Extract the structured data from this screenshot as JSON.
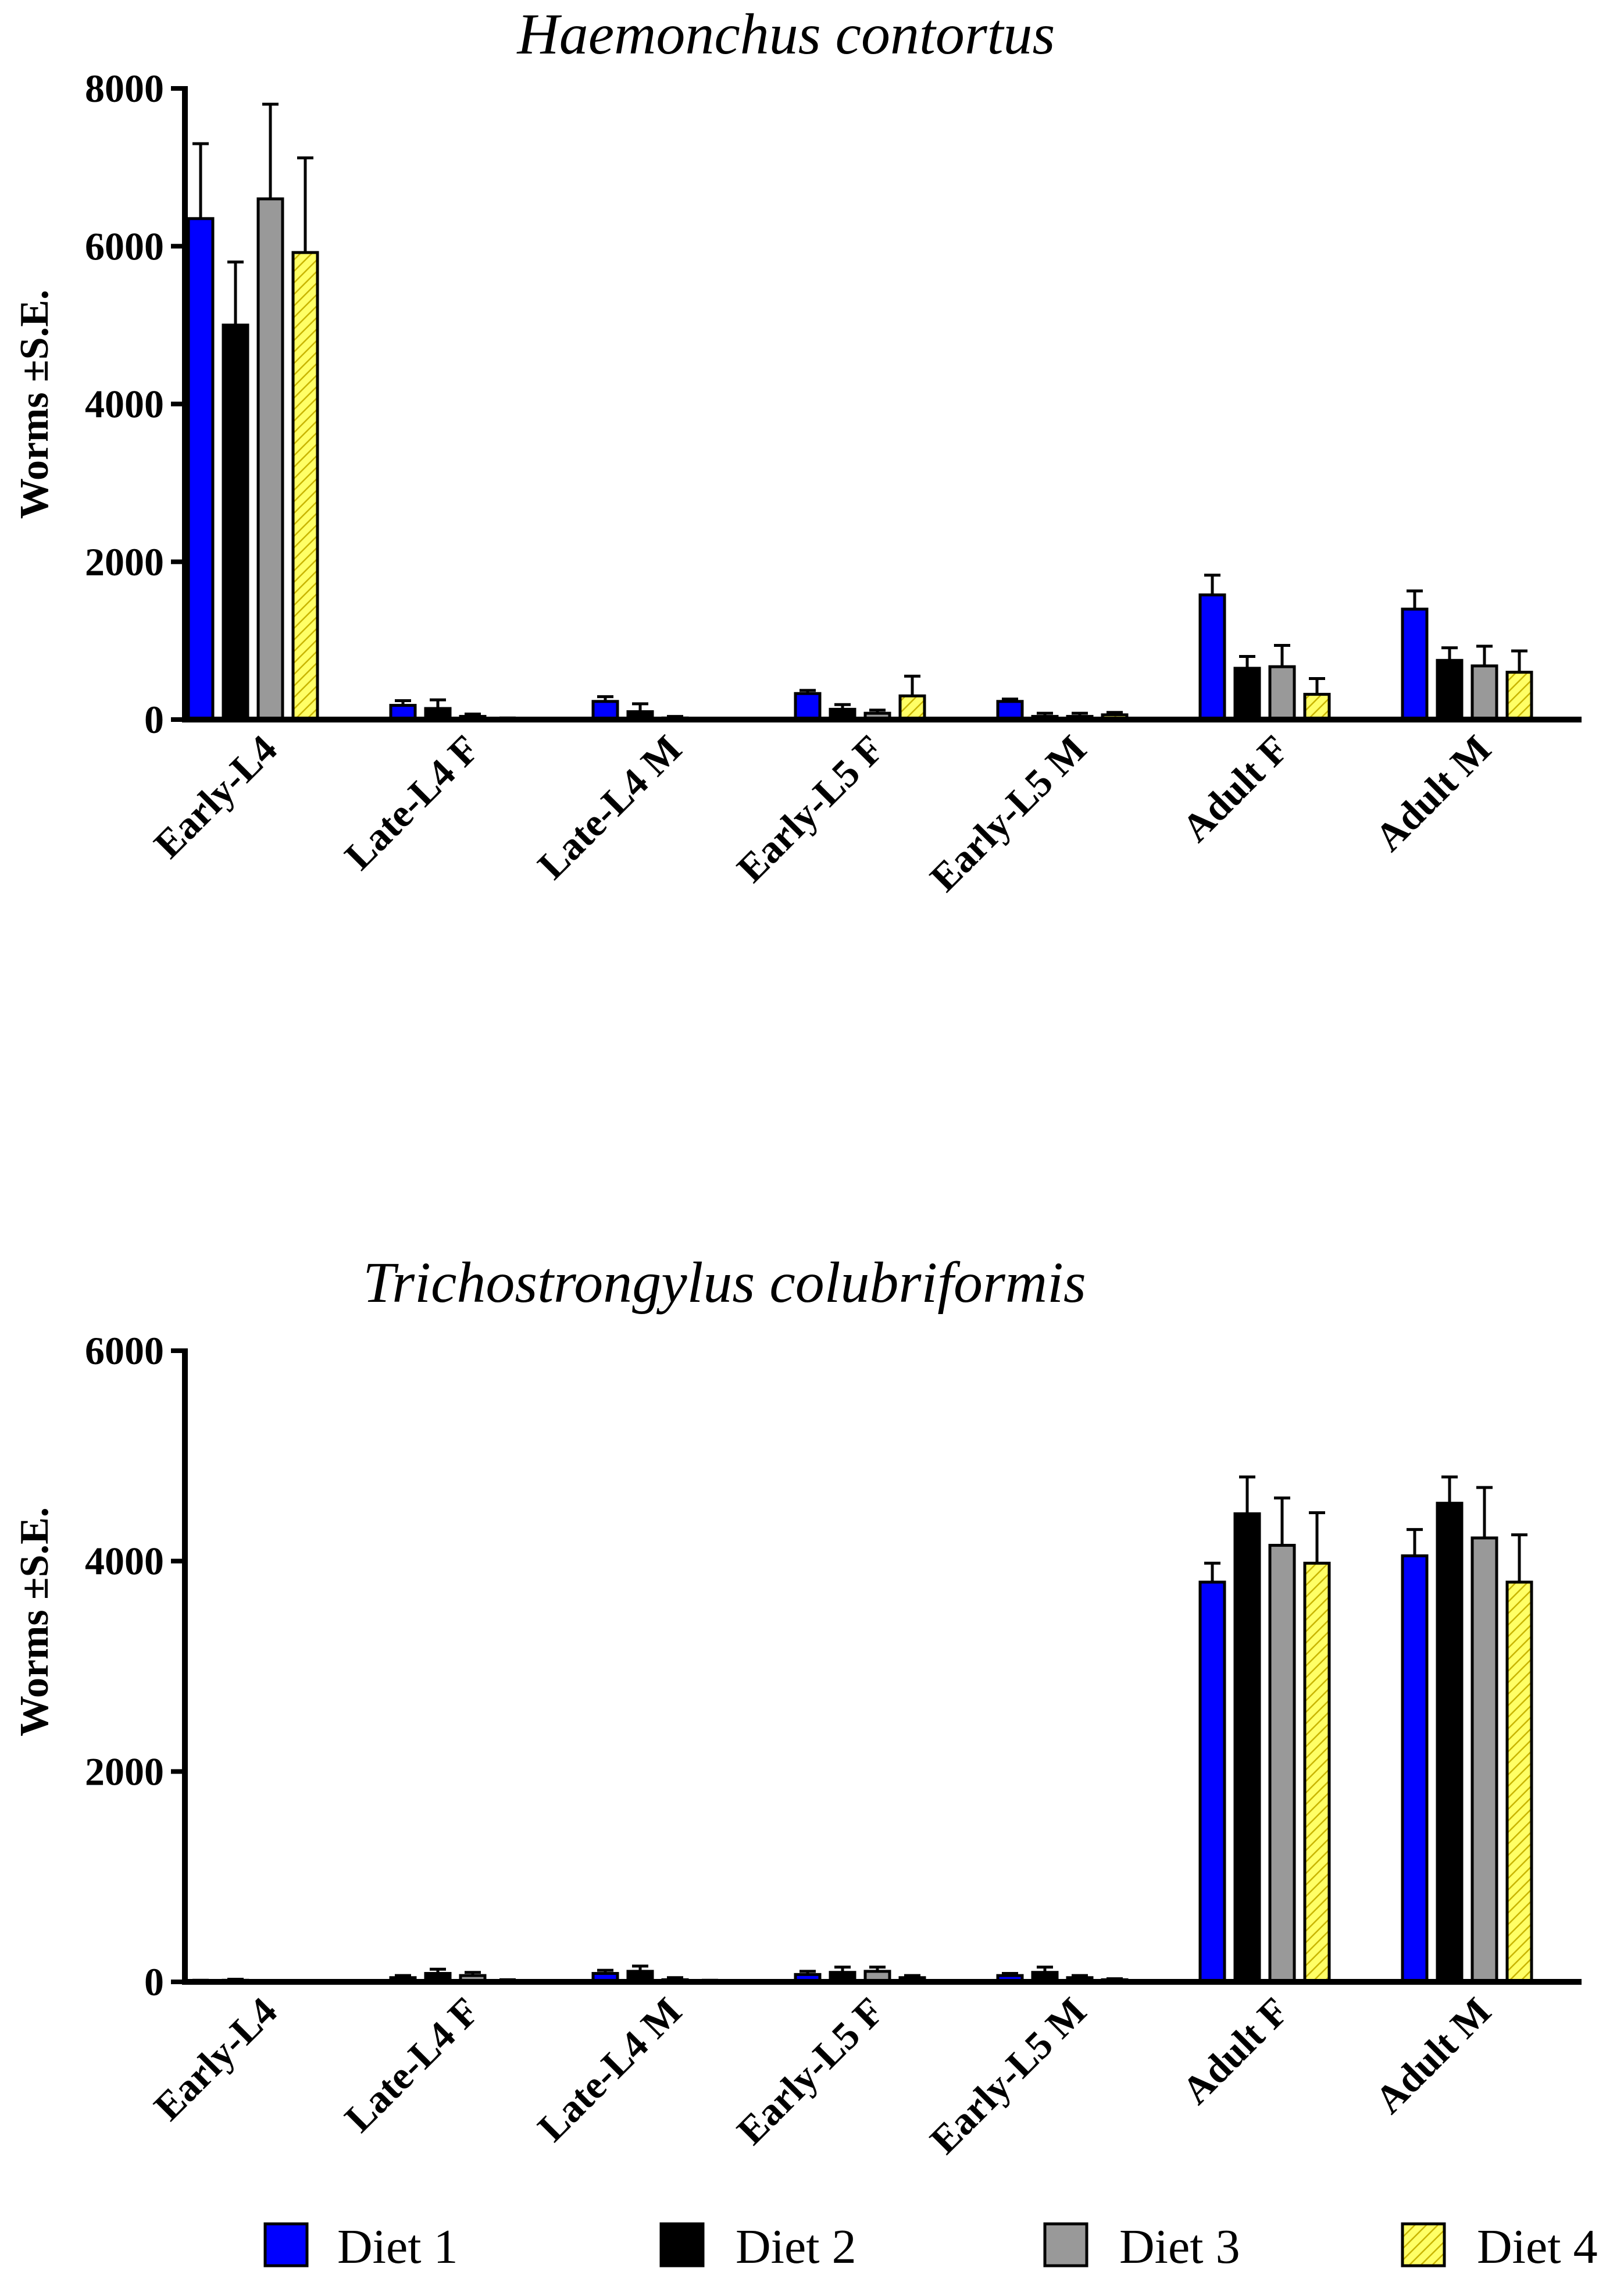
{
  "colors": {
    "diet1": "#0000ff",
    "diet2": "#000000",
    "diet3": "#999999",
    "diet4": "#ffff66",
    "axis": "#000000"
  },
  "legend": [
    {
      "label": "Diet 1",
      "color": "#0000ff",
      "hatch": false
    },
    {
      "label": "Diet 2",
      "color": "#000000",
      "hatch": false
    },
    {
      "label": "Diet 3",
      "color": "#999999",
      "hatch": false
    },
    {
      "label": "Diet 4",
      "color": "#ffff66",
      "hatch": true
    }
  ],
  "chart_data": [
    {
      "type": "bar",
      "title": "Haemonchus contortus",
      "ylabel": "Worms ±S.E.",
      "xlabel": "",
      "ylim": [
        0,
        8000
      ],
      "yticks": [
        0,
        2000,
        4000,
        6000,
        8000
      ],
      "categories": [
        "Early-L4",
        "Late-L4 F",
        "Late-L4 M",
        "Early-L5 F",
        "Early-L5 M",
        "Adult F",
        "Adult M"
      ],
      "series": [
        {
          "name": "Diet 1",
          "values": [
            6350,
            180,
            230,
            330,
            230,
            1580,
            1400
          ],
          "errors": [
            950,
            60,
            60,
            40,
            30,
            250,
            230
          ]
        },
        {
          "name": "Diet 2",
          "values": [
            5000,
            140,
            100,
            130,
            40,
            650,
            750
          ],
          "errors": [
            800,
            110,
            100,
            60,
            40,
            150,
            160
          ]
        },
        {
          "name": "Diet 3",
          "values": [
            6600,
            40,
            20,
            80,
            40,
            670,
            680
          ],
          "errors": [
            1200,
            30,
            20,
            40,
            40,
            270,
            250
          ]
        },
        {
          "name": "Diet 4",
          "values": [
            5920,
            10,
            10,
            300,
            60,
            320,
            600
          ],
          "errors": [
            1200,
            10,
            5,
            250,
            30,
            200,
            270
          ]
        }
      ]
    },
    {
      "type": "bar",
      "title": "Trichostrongylus colubriformis",
      "ylabel": "Worms ±S.E.",
      "xlabel": "",
      "ylim": [
        0,
        6000
      ],
      "yticks": [
        0,
        2000,
        4000,
        6000
      ],
      "categories": [
        "Early-L4",
        "Late-L4 F",
        "Late-L4 M",
        "Early-L5 F",
        "Early-L5 M",
        "Adult F",
        "Adult M"
      ],
      "series": [
        {
          "name": "Diet 1",
          "values": [
            10,
            40,
            80,
            70,
            60,
            3800,
            4050
          ],
          "errors": [
            5,
            20,
            30,
            30,
            20,
            180,
            250
          ]
        },
        {
          "name": "Diet 2",
          "values": [
            15,
            80,
            100,
            90,
            90,
            4450,
            4550
          ],
          "errors": [
            10,
            40,
            50,
            50,
            50,
            350,
            250
          ]
        },
        {
          "name": "Diet 3",
          "values": [
            5,
            60,
            20,
            100,
            40,
            4150,
            4220
          ],
          "errors": [
            5,
            30,
            20,
            40,
            20,
            450,
            480
          ]
        },
        {
          "name": "Diet 4",
          "values": [
            5,
            10,
            10,
            40,
            20,
            3980,
            3800
          ],
          "errors": [
            5,
            10,
            5,
            20,
            10,
            480,
            450
          ]
        }
      ]
    }
  ]
}
